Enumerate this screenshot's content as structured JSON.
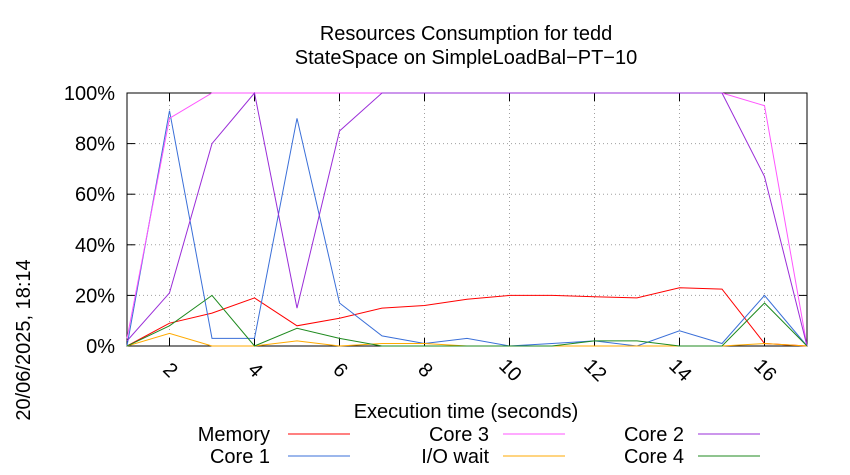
{
  "chart_data": {
    "type": "line",
    "title": "Resources Consumption for tedd",
    "subtitle": "StateSpace on SimpleLoadBal−PT−10",
    "xlabel": "Execution time (seconds)",
    "ylabel": "",
    "side_label": "20/06/2025, 18:14",
    "xlim": [
      1,
      17
    ],
    "ylim": [
      0,
      100
    ],
    "x_ticks": [
      2,
      4,
      6,
      8,
      10,
      12,
      14,
      16
    ],
    "y_ticks": [
      0,
      20,
      40,
      60,
      80,
      100
    ],
    "y_tick_labels": [
      "0%",
      "20%",
      "40%",
      "60%",
      "80%",
      "100%"
    ],
    "grid": true,
    "legend_position": "bottom",
    "x": [
      1,
      2,
      3,
      4,
      5,
      6,
      7,
      8,
      9,
      10,
      11,
      12,
      13,
      14,
      15,
      16,
      17
    ],
    "series": [
      {
        "name": "Memory",
        "color": "#ff0000",
        "values": [
          0,
          9,
          13,
          19,
          8,
          11,
          15,
          16,
          18.5,
          20,
          20,
          19.5,
          19,
          23,
          22.5,
          1,
          0
        ]
      },
      {
        "name": "Core 1",
        "color": "#3a6fd8",
        "values": [
          0,
          93,
          3,
          3,
          90,
          17,
          4,
          1,
          3,
          0,
          1,
          2,
          0,
          6,
          1,
          20,
          0
        ]
      },
      {
        "name": "Core 3",
        "color": "#ff55ff",
        "values": [
          3,
          90,
          100,
          100,
          100,
          100,
          100,
          100,
          100,
          100,
          100,
          100,
          100,
          100,
          100,
          95,
          0
        ]
      },
      {
        "name": "I/O wait",
        "color": "#ffaa00",
        "values": [
          0,
          5,
          0,
          0,
          2,
          0,
          1,
          1,
          0,
          0,
          0,
          0,
          0,
          0,
          0,
          1,
          0
        ]
      },
      {
        "name": "Core 2",
        "color": "#9a2cd8",
        "values": [
          2,
          21,
          80,
          100,
          15,
          85,
          100,
          100,
          100,
          100,
          100,
          100,
          100,
          100,
          100,
          67,
          0
        ]
      },
      {
        "name": "Core 4",
        "color": "#1f8a1f",
        "values": [
          0,
          8,
          20,
          0,
          7,
          3,
          0,
          0,
          0,
          0,
          0,
          2,
          2,
          0,
          0,
          17,
          0
        ]
      }
    ]
  }
}
